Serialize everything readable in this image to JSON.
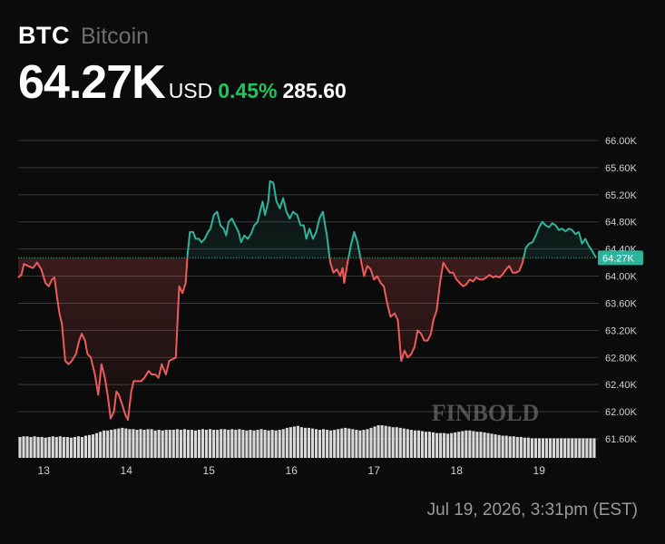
{
  "header": {
    "symbol": "BTC",
    "name": "Bitcoin",
    "price": "64.27K",
    "currency": "USD",
    "change_pct": "0.45%",
    "change_abs": "285.60"
  },
  "timestamp": "Jul 19, 2026, 3:31pm (EST)",
  "watermark": "FINBOLD",
  "colors": {
    "up": "#2bb39c",
    "down": "#ef5a5a",
    "change_positive": "#1fc65c",
    "grid": "#3a3a3a",
    "volume": "#d9d9d9",
    "label_bg": "#2bb39c"
  },
  "chart_data": {
    "type": "line",
    "title": "",
    "xlabel": "",
    "ylabel": "",
    "ylim": [
      61.6,
      66.0
    ],
    "y_unit": "K",
    "y_ticks": [
      "66.00K",
      "65.60K",
      "65.20K",
      "64.80K",
      "64.40K",
      "64.00K",
      "63.60K",
      "63.20K",
      "62.80K",
      "62.40K",
      "62.00K",
      "61.60K"
    ],
    "x_ticks": [
      {
        "label": "13",
        "x": 13.0
      },
      {
        "label": "14",
        "x": 14.0
      },
      {
        "label": "15",
        "x": 15.0
      },
      {
        "label": "16",
        "x": 16.0
      },
      {
        "label": "17",
        "x": 17.0
      },
      {
        "label": "18",
        "x": 18.0
      },
      {
        "label": "19",
        "x": 19.0
      }
    ],
    "xlim": [
      12.69,
      19.69
    ],
    "baseline": 64.27,
    "current_label": "64.27K",
    "series": [
      {
        "points": [
          [
            12.69,
            63.98
          ],
          [
            12.73,
            64.02
          ],
          [
            12.76,
            64.18
          ],
          [
            12.81,
            64.15
          ],
          [
            12.87,
            64.12
          ],
          [
            12.92,
            64.2
          ],
          [
            12.97,
            64.1
          ],
          [
            13.02,
            63.9
          ],
          [
            13.06,
            63.85
          ],
          [
            13.1,
            63.95
          ],
          [
            13.13,
            63.98
          ],
          [
            13.16,
            63.7
          ],
          [
            13.19,
            63.45
          ],
          [
            13.22,
            63.3
          ],
          [
            13.26,
            62.75
          ],
          [
            13.3,
            62.7
          ],
          [
            13.34,
            62.75
          ],
          [
            13.39,
            62.85
          ],
          [
            13.43,
            63.05
          ],
          [
            13.46,
            63.15
          ],
          [
            13.5,
            63.05
          ],
          [
            13.53,
            62.85
          ],
          [
            13.57,
            62.8
          ],
          [
            13.62,
            62.55
          ],
          [
            13.66,
            62.25
          ],
          [
            13.7,
            62.7
          ],
          [
            13.74,
            62.5
          ],
          [
            13.78,
            62.2
          ],
          [
            13.81,
            61.9
          ],
          [
            13.85,
            62.0
          ],
          [
            13.88,
            62.3
          ],
          [
            13.91,
            62.25
          ],
          [
            13.95,
            62.1
          ],
          [
            13.99,
            61.95
          ],
          [
            14.02,
            61.88
          ],
          [
            14.06,
            62.3
          ],
          [
            14.09,
            62.45
          ],
          [
            14.13,
            62.45
          ],
          [
            14.18,
            62.45
          ],
          [
            14.22,
            62.5
          ],
          [
            14.27,
            62.6
          ],
          [
            14.31,
            62.55
          ],
          [
            14.35,
            62.55
          ],
          [
            14.39,
            62.5
          ],
          [
            14.43,
            62.7
          ],
          [
            14.48,
            62.55
          ],
          [
            14.52,
            62.75
          ],
          [
            14.6,
            62.8
          ],
          [
            14.64,
            63.85
          ],
          [
            14.68,
            63.75
          ],
          [
            14.72,
            63.9
          ],
          [
            14.74,
            64.3
          ],
          [
            14.77,
            64.65
          ],
          [
            14.81,
            64.65
          ],
          [
            14.84,
            64.55
          ],
          [
            14.88,
            64.55
          ],
          [
            14.91,
            64.5
          ],
          [
            14.95,
            64.55
          ],
          [
            14.99,
            64.65
          ],
          [
            15.02,
            64.7
          ],
          [
            15.06,
            64.9
          ],
          [
            15.1,
            64.95
          ],
          [
            15.14,
            64.75
          ],
          [
            15.18,
            64.7
          ],
          [
            15.21,
            64.6
          ],
          [
            15.24,
            64.8
          ],
          [
            15.28,
            64.85
          ],
          [
            15.32,
            64.75
          ],
          [
            15.36,
            64.65
          ],
          [
            15.39,
            64.5
          ],
          [
            15.43,
            64.6
          ],
          [
            15.47,
            64.55
          ],
          [
            15.51,
            64.62
          ],
          [
            15.55,
            64.75
          ],
          [
            15.59,
            64.8
          ],
          [
            15.62,
            64.95
          ],
          [
            15.65,
            65.1
          ],
          [
            15.68,
            64.9
          ],
          [
            15.72,
            65.1
          ],
          [
            15.74,
            65.4
          ],
          [
            15.78,
            65.38
          ],
          [
            15.82,
            65.1
          ],
          [
            15.86,
            65.0
          ],
          [
            15.9,
            65.15
          ],
          [
            15.94,
            64.95
          ],
          [
            15.98,
            64.85
          ],
          [
            16.02,
            64.95
          ],
          [
            16.07,
            64.9
          ],
          [
            16.11,
            64.75
          ],
          [
            16.15,
            64.75
          ],
          [
            16.18,
            64.55
          ],
          [
            16.22,
            64.7
          ],
          [
            16.26,
            64.55
          ],
          [
            16.3,
            64.65
          ],
          [
            16.34,
            64.85
          ],
          [
            16.38,
            64.95
          ],
          [
            16.43,
            64.6
          ],
          [
            16.47,
            64.2
          ],
          [
            16.51,
            64.05
          ],
          [
            16.55,
            64.1
          ],
          [
            16.59,
            64.0
          ],
          [
            16.62,
            64.12
          ],
          [
            16.64,
            63.9
          ],
          [
            16.68,
            64.2
          ],
          [
            16.72,
            64.45
          ],
          [
            16.76,
            64.65
          ],
          [
            16.8,
            64.5
          ],
          [
            16.84,
            64.25
          ],
          [
            16.88,
            64.0
          ],
          [
            16.92,
            64.15
          ],
          [
            16.96,
            64.1
          ],
          [
            17.0,
            63.95
          ],
          [
            17.04,
            64.0
          ],
          [
            17.08,
            63.9
          ],
          [
            17.12,
            63.85
          ],
          [
            17.16,
            63.6
          ],
          [
            17.2,
            63.4
          ],
          [
            17.25,
            63.45
          ],
          [
            17.29,
            63.35
          ],
          [
            17.33,
            62.75
          ],
          [
            17.37,
            62.9
          ],
          [
            17.41,
            62.8
          ],
          [
            17.45,
            62.85
          ],
          [
            17.49,
            62.95
          ],
          [
            17.53,
            63.2
          ],
          [
            17.57,
            63.15
          ],
          [
            17.61,
            63.05
          ],
          [
            17.65,
            63.05
          ],
          [
            17.69,
            63.15
          ],
          [
            17.72,
            63.35
          ],
          [
            17.76,
            63.5
          ],
          [
            17.8,
            63.9
          ],
          [
            17.84,
            64.2
          ],
          [
            17.88,
            64.12
          ],
          [
            17.92,
            64.05
          ],
          [
            17.96,
            64.05
          ],
          [
            18.0,
            63.95
          ],
          [
            18.04,
            63.9
          ],
          [
            18.08,
            63.85
          ],
          [
            18.12,
            63.88
          ],
          [
            18.16,
            63.95
          ],
          [
            18.2,
            63.92
          ],
          [
            18.24,
            63.98
          ],
          [
            18.28,
            63.95
          ],
          [
            18.32,
            63.95
          ],
          [
            18.36,
            63.98
          ],
          [
            18.4,
            64.02
          ],
          [
            18.44,
            63.98
          ],
          [
            18.48,
            64.0
          ],
          [
            18.52,
            63.98
          ],
          [
            18.56,
            64.03
          ],
          [
            18.6,
            64.1
          ],
          [
            18.64,
            64.15
          ],
          [
            18.68,
            64.05
          ],
          [
            18.72,
            64.05
          ],
          [
            18.76,
            64.08
          ],
          [
            18.8,
            64.2
          ],
          [
            18.84,
            64.42
          ],
          [
            18.88,
            64.48
          ],
          [
            18.92,
            64.5
          ],
          [
            18.96,
            64.6
          ],
          [
            19.0,
            64.72
          ],
          [
            19.04,
            64.8
          ],
          [
            19.08,
            64.75
          ],
          [
            19.12,
            64.72
          ],
          [
            19.16,
            64.78
          ],
          [
            19.2,
            64.75
          ],
          [
            19.24,
            64.68
          ],
          [
            19.28,
            64.7
          ],
          [
            19.32,
            64.66
          ],
          [
            19.36,
            64.7
          ],
          [
            19.4,
            64.68
          ],
          [
            19.44,
            64.62
          ],
          [
            19.48,
            64.65
          ],
          [
            19.52,
            64.48
          ],
          [
            19.56,
            64.55
          ],
          [
            19.6,
            64.45
          ],
          [
            19.64,
            64.38
          ],
          [
            19.69,
            64.27
          ]
        ]
      }
    ],
    "volume": [
      0.32,
      0.33,
      0.33,
      0.32,
      0.33,
      0.32,
      0.32,
      0.31,
      0.32,
      0.33,
      0.32,
      0.33,
      0.32,
      0.32,
      0.31,
      0.32,
      0.33,
      0.32,
      0.34,
      0.35,
      0.36,
      0.38,
      0.4,
      0.42,
      0.42,
      0.43,
      0.44,
      0.45,
      0.46,
      0.45,
      0.44,
      0.44,
      0.43,
      0.44,
      0.43,
      0.44,
      0.44,
      0.42,
      0.43,
      0.42,
      0.43,
      0.43,
      0.43,
      0.44,
      0.43,
      0.44,
      0.43,
      0.43,
      0.42,
      0.43,
      0.44,
      0.43,
      0.44,
      0.43,
      0.43,
      0.44,
      0.44,
      0.43,
      0.44,
      0.43,
      0.44,
      0.43,
      0.42,
      0.43,
      0.42,
      0.43,
      0.44,
      0.43,
      0.42,
      0.43,
      0.42,
      0.43,
      0.44,
      0.46,
      0.47,
      0.48,
      0.49,
      0.47,
      0.46,
      0.46,
      0.45,
      0.44,
      0.43,
      0.44,
      0.43,
      0.42,
      0.43,
      0.44,
      0.45,
      0.46,
      0.45,
      0.44,
      0.43,
      0.42,
      0.43,
      0.44,
      0.46,
      0.48,
      0.5,
      0.5,
      0.49,
      0.48,
      0.47,
      0.47,
      0.46,
      0.45,
      0.44,
      0.43,
      0.42,
      0.42,
      0.41,
      0.4,
      0.4,
      0.39,
      0.38,
      0.38,
      0.38,
      0.37,
      0.38,
      0.39,
      0.4,
      0.41,
      0.42,
      0.42,
      0.41,
      0.4,
      0.4,
      0.39,
      0.38,
      0.37,
      0.36,
      0.35,
      0.34,
      0.34,
      0.33,
      0.33,
      0.32,
      0.32,
      0.31,
      0.31,
      0.3,
      0.3,
      0.3,
      0.3,
      0.3,
      0.3,
      0.3,
      0.3,
      0.3,
      0.3,
      0.3,
      0.3,
      0.3,
      0.3,
      0.3,
      0.3,
      0.3,
      0.3
    ]
  }
}
